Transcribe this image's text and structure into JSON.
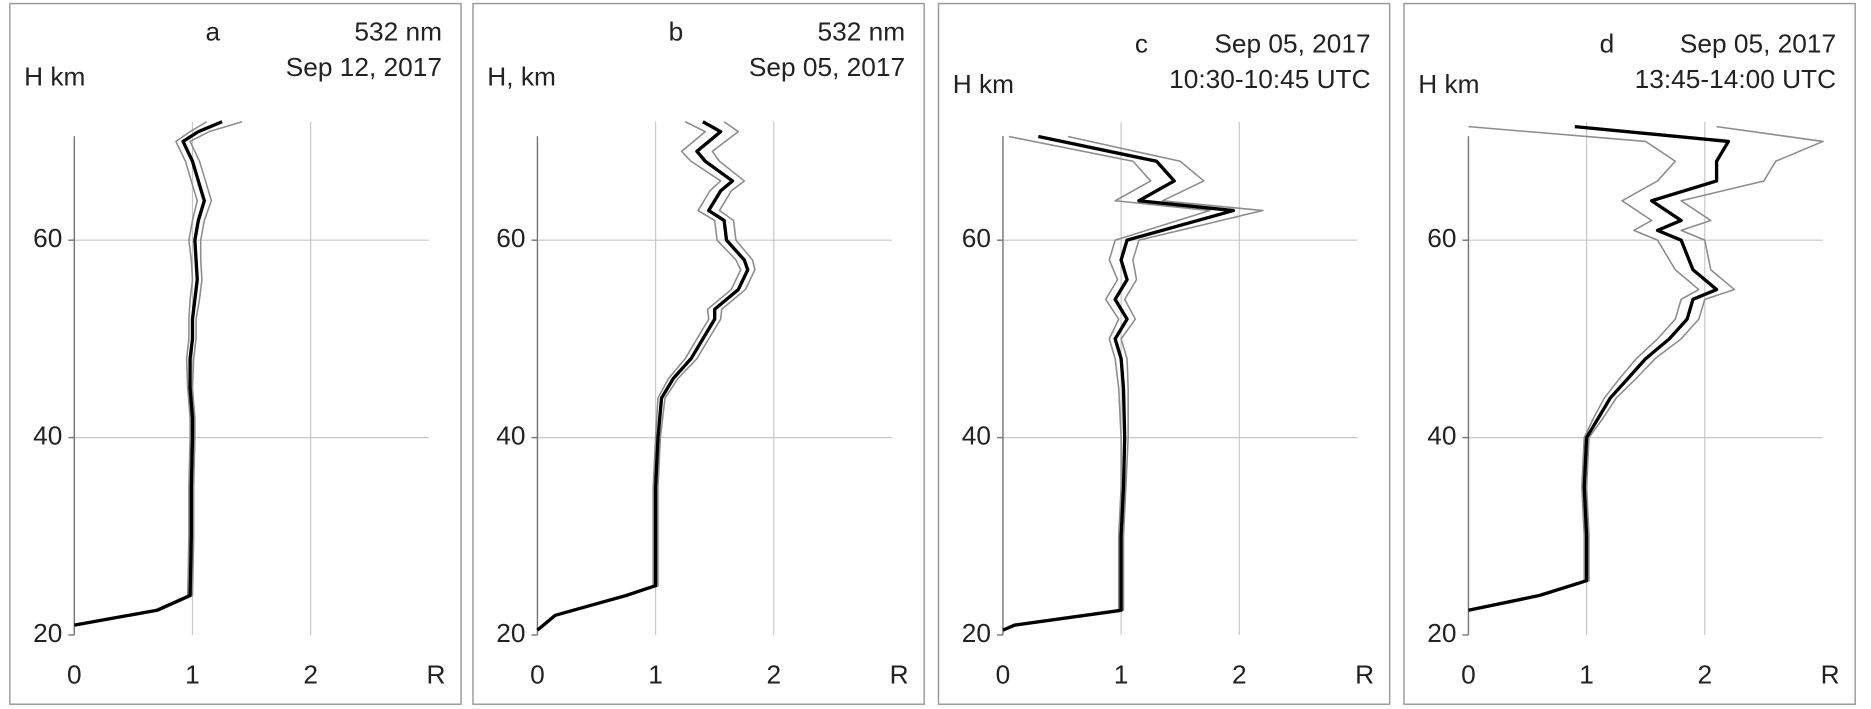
{
  "chart_data": [
    {
      "type": "line",
      "letter": "a",
      "header": [
        "532 nm",
        "Sep 12, 2017"
      ],
      "ylabel": "H km",
      "xlabel": "R",
      "xlim": [
        0,
        3
      ],
      "xticks": [
        0,
        1,
        2
      ],
      "ylim": [
        20,
        72
      ],
      "yticks": [
        20,
        40,
        60
      ],
      "grid": true,
      "y": [
        21,
        22.5,
        24,
        30,
        35,
        40,
        42,
        45,
        48,
        50,
        52,
        54,
        56,
        58,
        60,
        62,
        64,
        66,
        68,
        70,
        71,
        72
      ],
      "series": [
        {
          "color": "#8c8c8c",
          "values": [
            0,
            0.68,
            0.96,
            0.97,
            0.97,
            0.98,
            0.98,
            0.96,
            0.95,
            0.97,
            0.97,
            0.98,
            1.0,
            0.99,
            0.97,
            1.0,
            1.04,
            0.99,
            0.94,
            0.86,
            0.98,
            1.12
          ]
        },
        {
          "color": "#8c8c8c",
          "values": [
            0,
            0.72,
            1.0,
            1.01,
            1.01,
            1.02,
            1.02,
            1.0,
            1.01,
            1.03,
            1.03,
            1.06,
            1.08,
            1.07,
            1.07,
            1.1,
            1.16,
            1.11,
            1.06,
            0.98,
            1.14,
            1.42
          ]
        },
        {
          "color": "#000000",
          "values": [
            0,
            0.7,
            0.98,
            0.99,
            0.99,
            1.0,
            1.0,
            0.98,
            0.98,
            1.0,
            1.0,
            1.02,
            1.04,
            1.03,
            1.02,
            1.05,
            1.1,
            1.05,
            1.0,
            0.92,
            1.05,
            1.25
          ]
        }
      ]
    },
    {
      "type": "line",
      "letter": "b",
      "header": [
        "532 nm",
        "Sep 05, 2017"
      ],
      "ylabel": "H, km",
      "xlabel": "R",
      "xlim": [
        0,
        3
      ],
      "xticks": [
        0,
        1,
        2
      ],
      "ylim": [
        20,
        72
      ],
      "yticks": [
        20,
        40,
        60
      ],
      "grid": true,
      "y": [
        20.5,
        22,
        24,
        25,
        30,
        35,
        40,
        44,
        46,
        48,
        50,
        52,
        53,
        55,
        57,
        58,
        60,
        62,
        63,
        65,
        66,
        68,
        69,
        71,
        72
      ],
      "series": [
        {
          "color": "#8c8c8c",
          "values": [
            0,
            0.14,
            0.73,
            0.98,
            0.98,
            0.98,
            1.0,
            1.02,
            1.11,
            1.25,
            1.35,
            1.45,
            1.44,
            1.64,
            1.72,
            1.68,
            1.52,
            1.5,
            1.36,
            1.46,
            1.55,
            1.3,
            1.22,
            1.42,
            1.25
          ]
        },
        {
          "color": "#8c8c8c",
          "values": [
            0,
            0.16,
            0.77,
            1.02,
            1.02,
            1.02,
            1.04,
            1.08,
            1.19,
            1.35,
            1.45,
            1.55,
            1.56,
            1.76,
            1.84,
            1.82,
            1.68,
            1.66,
            1.54,
            1.64,
            1.75,
            1.54,
            1.48,
            1.7,
            1.58
          ]
        },
        {
          "color": "#000000",
          "values": [
            0,
            0.15,
            0.75,
            1.0,
            1.0,
            1.0,
            1.02,
            1.05,
            1.15,
            1.3,
            1.4,
            1.5,
            1.5,
            1.7,
            1.78,
            1.75,
            1.6,
            1.58,
            1.45,
            1.55,
            1.65,
            1.42,
            1.35,
            1.55,
            1.4
          ]
        }
      ]
    },
    {
      "type": "line",
      "letter": "c",
      "header": [
        "Sep 05, 2017",
        "10:30-10:45 UTC"
      ],
      "ylabel": "H km",
      "xlabel": "R",
      "xlim": [
        0,
        3
      ],
      "xticks": [
        0,
        1,
        2
      ],
      "ylim": [
        20,
        72
      ],
      "yticks": [
        20,
        40,
        60
      ],
      "grid": true,
      "y": [
        20.5,
        21,
        22.5,
        25,
        30,
        35,
        40,
        45,
        48,
        50,
        52,
        54,
        56,
        58,
        60,
        63,
        64,
        66,
        68,
        70.5
      ],
      "series": [
        {
          "color": "#8c8c8c",
          "values": [
            0,
            0.08,
            0.98,
            0.98,
            0.98,
            1.0,
            1.0,
            0.98,
            0.95,
            0.9,
            0.98,
            0.87,
            0.97,
            0.9,
            0.95,
            1.75,
            0.95,
            1.25,
            1.1,
            0.05
          ]
        },
        {
          "color": "#8c8c8c",
          "values": [
            0,
            0.12,
            1.02,
            1.02,
            1.02,
            1.04,
            1.06,
            1.06,
            1.05,
            1.0,
            1.12,
            1.03,
            1.13,
            1.1,
            1.15,
            2.2,
            1.35,
            1.7,
            1.5,
            0.55
          ]
        },
        {
          "color": "#000000",
          "values": [
            0,
            0.1,
            1.0,
            1.0,
            1.0,
            1.02,
            1.03,
            1.02,
            1.0,
            0.95,
            1.05,
            0.95,
            1.05,
            1.0,
            1.05,
            1.95,
            1.15,
            1.45,
            1.3,
            0.3
          ]
        }
      ]
    },
    {
      "type": "line",
      "letter": "d",
      "header": [
        "Sep 05, 2017",
        "13:45-14:00 UTC"
      ],
      "ylabel": "H km",
      "xlabel": "R",
      "xlim": [
        0,
        3
      ],
      "xticks": [
        0,
        1,
        2
      ],
      "ylim": [
        20,
        72
      ],
      "yticks": [
        20,
        40,
        60
      ],
      "grid": true,
      "y": [
        22.5,
        24,
        25.5,
        30,
        35,
        40,
        42,
        44,
        46,
        48,
        50,
        52,
        54,
        55,
        57,
        60,
        61,
        62,
        64,
        66,
        68,
        70,
        71.5
      ],
      "series": [
        {
          "color": "#8c8c8c",
          "values": [
            0,
            0.58,
            0.98,
            0.98,
            0.96,
            0.98,
            1.06,
            1.15,
            1.28,
            1.42,
            1.6,
            1.75,
            1.8,
            1.95,
            1.75,
            1.6,
            1.4,
            1.55,
            1.3,
            1.6,
            1.75,
            1.5,
            0
          ]
        },
        {
          "color": "#8c8c8c",
          "values": [
            0,
            0.62,
            1.02,
            1.02,
            1.0,
            1.02,
            1.14,
            1.25,
            1.42,
            1.58,
            1.8,
            1.95,
            2.0,
            2.25,
            2.05,
            2.0,
            1.8,
            2.05,
            1.8,
            2.5,
            2.6,
            3.0,
            2.1
          ]
        },
        {
          "color": "#000000",
          "values": [
            0,
            0.6,
            1.0,
            1.0,
            0.98,
            1.0,
            1.1,
            1.2,
            1.35,
            1.5,
            1.7,
            1.85,
            1.9,
            2.1,
            1.9,
            1.8,
            1.6,
            1.8,
            1.55,
            2.1,
            2.1,
            2.2,
            0.9
          ]
        }
      ]
    }
  ]
}
